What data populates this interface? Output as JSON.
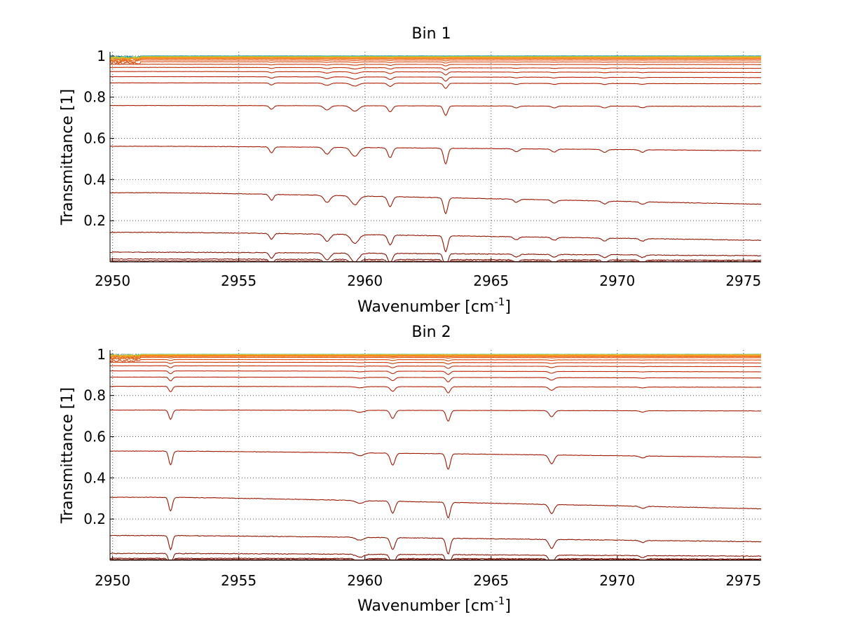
{
  "chart_data": [
    {
      "type": "line",
      "title": "Bin 1",
      "xlabel": "Wavenumber [cm",
      "xlabel_sup": "-1",
      "xlabel_end": "]",
      "ylabel": "Transmittance [1]",
      "xlim": [
        2949.9,
        2975.7
      ],
      "ylim": [
        0,
        1.02
      ],
      "xticks": [
        "2950",
        "2955",
        "2960",
        "2965",
        "2970",
        "2975"
      ],
      "yticks": [
        "0.2",
        "0.4",
        "0.6",
        "0.8",
        "1"
      ],
      "grid": true,
      "legend": "none",
      "absorption_lines": [
        {
          "x": 2956.3,
          "depth": 0.6,
          "width": 0.08
        },
        {
          "x": 2958.5,
          "depth": 0.7,
          "width": 0.12
        },
        {
          "x": 2959.6,
          "depth": 0.9,
          "width": 0.15
        },
        {
          "x": 2961.0,
          "depth": 1.0,
          "width": 0.09
        },
        {
          "x": 2963.2,
          "depth": 1.6,
          "width": 0.08
        },
        {
          "x": 2966.0,
          "depth": 0.3,
          "width": 0.1
        },
        {
          "x": 2967.5,
          "depth": 0.3,
          "width": 0.1
        },
        {
          "x": 2969.5,
          "depth": 0.3,
          "width": 0.1
        },
        {
          "x": 2971.0,
          "depth": 0.25,
          "width": 0.1
        }
      ],
      "series": [
        {
          "start": 0.999,
          "end": 0.999,
          "color": "#0b72b8"
        },
        {
          "start": 0.998,
          "end": 0.998,
          "color": "#1aa6c9"
        },
        {
          "start": 0.997,
          "end": 0.997,
          "color": "#2bbf9a"
        },
        {
          "start": 0.996,
          "end": 0.996,
          "color": "#a0c83c"
        },
        {
          "start": 0.995,
          "end": 0.995,
          "color": "#f0c020"
        },
        {
          "start": 0.993,
          "end": 0.992,
          "color": "#f5a020"
        },
        {
          "start": 0.99,
          "end": 0.989,
          "color": "#f58220"
        },
        {
          "start": 0.986,
          "end": 0.985,
          "color": "#ee6a18"
        },
        {
          "start": 0.98,
          "end": 0.979,
          "color": "#e35a14"
        },
        {
          "start": 0.972,
          "end": 0.97,
          "color": "#d84a10"
        },
        {
          "start": 0.96,
          "end": 0.958,
          "color": "#cc3a0c"
        },
        {
          "start": 0.945,
          "end": 0.94,
          "color": "#c43008"
        },
        {
          "start": 0.925,
          "end": 0.92,
          "color": "#c02a06"
        },
        {
          "start": 0.9,
          "end": 0.895,
          "color": "#b82404"
        },
        {
          "start": 0.87,
          "end": 0.865,
          "color": "#b02002"
        },
        {
          "start": 0.76,
          "end": 0.755,
          "color": "#a81c02"
        },
        {
          "start": 0.565,
          "end": 0.54,
          "color": "#a01800"
        },
        {
          "start": 0.345,
          "end": 0.28,
          "color": "#981600"
        },
        {
          "start": 0.15,
          "end": 0.105,
          "color": "#901400"
        },
        {
          "start": 0.05,
          "end": 0.03,
          "color": "#881200"
        },
        {
          "start": 0.015,
          "end": 0.008,
          "color": "#801000"
        },
        {
          "start": 0.005,
          "end": 0.002,
          "color": "#780e00"
        }
      ]
    },
    {
      "type": "line",
      "title": "Bin 2",
      "xlabel": "Wavenumber [cm",
      "xlabel_sup": "-1",
      "xlabel_end": "]",
      "ylabel": "Transmittance [1]",
      "xlim": [
        2949.9,
        2975.7
      ],
      "ylim": [
        0,
        1.02
      ],
      "xticks": [
        "2950",
        "2955",
        "2960",
        "2965",
        "2970",
        "2975"
      ],
      "yticks": [
        "0.2",
        "0.4",
        "0.6",
        "0.8",
        "1"
      ],
      "grid": true,
      "legend": "none",
      "absorption_lines": [
        {
          "x": 2952.3,
          "depth": 1.4,
          "width": 0.07
        },
        {
          "x": 2959.8,
          "depth": 0.3,
          "width": 0.15
        },
        {
          "x": 2961.1,
          "depth": 1.2,
          "width": 0.09
        },
        {
          "x": 2963.3,
          "depth": 1.6,
          "width": 0.08
        },
        {
          "x": 2967.4,
          "depth": 0.9,
          "width": 0.1
        },
        {
          "x": 2971.0,
          "depth": 0.2,
          "width": 0.1
        }
      ],
      "series": [
        {
          "start": 0.999,
          "end": 0.999,
          "color": "#2bbfb0"
        },
        {
          "start": 0.998,
          "end": 0.998,
          "color": "#a0c83c"
        },
        {
          "start": 0.997,
          "end": 0.997,
          "color": "#f0c020"
        },
        {
          "start": 0.995,
          "end": 0.995,
          "color": "#f5a020"
        },
        {
          "start": 0.993,
          "end": 0.992,
          "color": "#f58220"
        },
        {
          "start": 0.99,
          "end": 0.988,
          "color": "#ee6a18"
        },
        {
          "start": 0.985,
          "end": 0.983,
          "color": "#e35a14"
        },
        {
          "start": 0.975,
          "end": 0.972,
          "color": "#d84a10"
        },
        {
          "start": 0.962,
          "end": 0.958,
          "color": "#cc3a0c"
        },
        {
          "start": 0.945,
          "end": 0.94,
          "color": "#c43008"
        },
        {
          "start": 0.92,
          "end": 0.915,
          "color": "#c02a06"
        },
        {
          "start": 0.89,
          "end": 0.885,
          "color": "#b82404"
        },
        {
          "start": 0.845,
          "end": 0.84,
          "color": "#b02002"
        },
        {
          "start": 0.73,
          "end": 0.725,
          "color": "#a81c02"
        },
        {
          "start": 0.535,
          "end": 0.5,
          "color": "#a01800"
        },
        {
          "start": 0.315,
          "end": 0.25,
          "color": "#981600"
        },
        {
          "start": 0.125,
          "end": 0.09,
          "color": "#901400"
        },
        {
          "start": 0.035,
          "end": 0.02,
          "color": "#881200"
        },
        {
          "start": 0.01,
          "end": 0.006,
          "color": "#801000"
        },
        {
          "start": 0.004,
          "end": 0.002,
          "color": "#780e00"
        }
      ]
    }
  ]
}
